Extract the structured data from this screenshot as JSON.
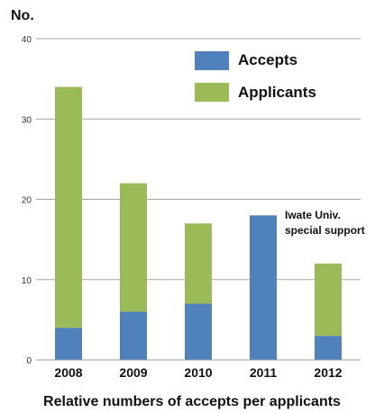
{
  "chart_data": {
    "type": "bar",
    "stacked": true,
    "ylabel": "No.",
    "ylim": [
      0,
      40
    ],
    "yticks": [
      0,
      10,
      20,
      30,
      40
    ],
    "categories": [
      "2008",
      "2009",
      "2010",
      "2011",
      "2012"
    ],
    "series": [
      {
        "name": "Accepts",
        "color": "#4f81bd",
        "values": [
          4,
          6,
          7,
          18,
          3
        ]
      },
      {
        "name": "Applicants",
        "color": "#9bbb59",
        "values": [
          30,
          16,
          10,
          0,
          9
        ]
      }
    ],
    "annotation": {
      "category": "2011",
      "lines": [
        "Iwate Univ.",
        "special support"
      ]
    },
    "caption": "Relative numbers of accepts per applicants",
    "grid": true,
    "legend_position": "top-right"
  }
}
